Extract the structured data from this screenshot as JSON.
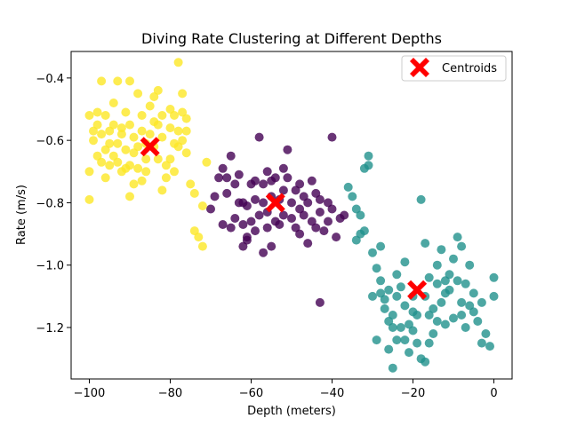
{
  "chart_data": {
    "type": "scatter",
    "title": "Diving Rate Clustering at Different Depths",
    "xlabel": "Depth (meters)",
    "ylabel": "Rate (m/s)",
    "xlim": [
      -104.5,
      4.5
    ],
    "ylim": [
      -1.365,
      -0.315
    ],
    "xticks": [
      -100,
      -80,
      -60,
      -40,
      -20,
      0
    ],
    "yticks": [
      -1.2,
      -1.0,
      -0.8,
      -0.6,
      -0.4
    ],
    "xtick_labels": [
      "−100",
      "−80",
      "−60",
      "−40",
      "−20",
      "0"
    ],
    "ytick_labels": [
      "−1.2",
      "−1.0",
      "−0.8",
      "−0.6",
      "−0.4"
    ],
    "grid": false,
    "legend": {
      "placement": "top-right",
      "entries": [
        "Centroids"
      ]
    },
    "colors": {
      "cluster0": "#440154",
      "cluster1": "#21918c",
      "cluster2": "#fde725",
      "centroid": "#ff0000"
    },
    "clusters": [
      {
        "color": "#440154",
        "points": [
          [
            -70,
            -0.82
          ],
          [
            -69,
            -0.78
          ],
          [
            -68,
            -0.72
          ],
          [
            -67,
            -0.69
          ],
          [
            -66,
            -0.72
          ],
          [
            -66,
            -0.77
          ],
          [
            -65,
            -0.65
          ],
          [
            -65,
            -0.88
          ],
          [
            -64,
            -0.74
          ],
          [
            -64,
            -0.85
          ],
          [
            -63,
            -0.8
          ],
          [
            -62,
            -0.87
          ],
          [
            -62,
            -0.94
          ],
          [
            -61,
            -0.81
          ],
          [
            -61,
            -0.92
          ],
          [
            -60,
            -0.86
          ],
          [
            -60,
            -0.74
          ],
          [
            -59,
            -0.73
          ],
          [
            -59,
            -0.79
          ],
          [
            -58,
            -0.84
          ],
          [
            -57,
            -0.74
          ],
          [
            -57,
            -0.8
          ],
          [
            -56,
            -0.83
          ],
          [
            -56,
            -0.88
          ],
          [
            -55,
            -0.73
          ],
          [
            -55,
            -0.78
          ],
          [
            -54,
            -0.72
          ],
          [
            -54,
            -0.86
          ],
          [
            -53,
            -0.79
          ],
          [
            -53,
            -0.87
          ],
          [
            -52,
            -0.76
          ],
          [
            -52,
            -0.69
          ],
          [
            -51,
            -0.72
          ],
          [
            -50,
            -0.8
          ],
          [
            -50,
            -0.85
          ],
          [
            -49,
            -0.76
          ],
          [
            -48,
            -0.82
          ],
          [
            -48,
            -0.9
          ],
          [
            -47,
            -0.78
          ],
          [
            -47,
            -0.84
          ],
          [
            -46,
            -0.8
          ],
          [
            -45,
            -0.86
          ],
          [
            -45,
            -0.73
          ],
          [
            -44,
            -0.88
          ],
          [
            -43,
            -0.83
          ],
          [
            -43,
            -0.79
          ],
          [
            -42,
            -0.89
          ],
          [
            -41,
            -0.86
          ],
          [
            -41,
            -0.8
          ],
          [
            -40,
            -0.82
          ],
          [
            -39,
            -0.91
          ],
          [
            -38,
            -0.85
          ],
          [
            -37,
            -0.84
          ],
          [
            -59,
            -0.89
          ],
          [
            -57,
            -0.96
          ],
          [
            -62,
            -0.8
          ],
          [
            -58,
            -0.59
          ],
          [
            -51,
            -0.63
          ],
          [
            -40,
            -0.59
          ],
          [
            -43,
            -1.12
          ],
          [
            -61,
            -0.91
          ],
          [
            -55,
            -0.94
          ],
          [
            -49,
            -0.88
          ],
          [
            -46,
            -0.93
          ],
          [
            -63,
            -0.71
          ],
          [
            -67,
            -0.87
          ],
          [
            -56,
            -0.7
          ],
          [
            -48,
            -0.74
          ],
          [
            -44,
            -0.77
          ],
          [
            -52,
            -0.84
          ]
        ]
      },
      {
        "color": "#21918c",
        "points": [
          [
            -36,
            -0.75
          ],
          [
            -35,
            -0.78
          ],
          [
            -34,
            -0.82
          ],
          [
            -33,
            -0.84
          ],
          [
            -32,
            -0.69
          ],
          [
            -31,
            -0.68
          ],
          [
            -31,
            -0.65
          ],
          [
            -33,
            -0.9
          ],
          [
            -34,
            -0.92
          ],
          [
            -32,
            -0.89
          ],
          [
            -30,
            -0.96
          ],
          [
            -29,
            -1.01
          ],
          [
            -28,
            -1.05
          ],
          [
            -28,
            -1.09
          ],
          [
            -27,
            -1.11
          ],
          [
            -27,
            -1.14
          ],
          [
            -26,
            -1.18
          ],
          [
            -25,
            -1.2
          ],
          [
            -25,
            -1.16
          ],
          [
            -24,
            -1.1
          ],
          [
            -24,
            -1.03
          ],
          [
            -23,
            -1.07
          ],
          [
            -22,
            -1.13
          ],
          [
            -22,
            -1.24
          ],
          [
            -21,
            -1.19
          ],
          [
            -20,
            -1.15
          ],
          [
            -20,
            -1.21
          ],
          [
            -19,
            -1.25
          ],
          [
            -18,
            -1.3
          ],
          [
            -18,
            -0.79
          ],
          [
            -17,
            -1.1
          ],
          [
            -17,
            -0.93
          ],
          [
            -16,
            -1.04
          ],
          [
            -16,
            -1.16
          ],
          [
            -15,
            -1.22
          ],
          [
            -14,
            -1.0
          ],
          [
            -14,
            -1.06
          ],
          [
            -13,
            -1.12
          ],
          [
            -13,
            -0.95
          ],
          [
            -12,
            -1.19
          ],
          [
            -11,
            -1.03
          ],
          [
            -11,
            -1.08
          ],
          [
            -10,
            -1.17
          ],
          [
            -10,
            -0.98
          ],
          [
            -9,
            -0.91
          ],
          [
            -9,
            -1.05
          ],
          [
            -8,
            -0.94
          ],
          [
            -8,
            -1.12
          ],
          [
            -7,
            -1.2
          ],
          [
            -7,
            -1.06
          ],
          [
            -6,
            -1.0
          ],
          [
            -5,
            -1.09
          ],
          [
            -5,
            -1.15
          ],
          [
            -4,
            -1.18
          ],
          [
            -3,
            -1.12
          ],
          [
            -3,
            -1.25
          ],
          [
            -2,
            -1.22
          ],
          [
            -1,
            -1.26
          ],
          [
            0,
            -1.04
          ],
          [
            0,
            -1.1
          ],
          [
            -29,
            -1.24
          ],
          [
            -26,
            -1.27
          ],
          [
            -25,
            -1.33
          ],
          [
            -23,
            -1.2
          ],
          [
            -21,
            -1.28
          ],
          [
            -19,
            -1.16
          ],
          [
            -17,
            -1.31
          ],
          [
            -15,
            -1.14
          ],
          [
            -12,
            -1.09
          ],
          [
            -6,
            -1.13
          ],
          [
            -30,
            -1.1
          ],
          [
            -28,
            -0.94
          ],
          [
            -26,
            -1.08
          ],
          [
            -24,
            -1.24
          ],
          [
            -22,
            -0.99
          ],
          [
            -20,
            -1.1
          ],
          [
            -16,
            -1.25
          ],
          [
            -14,
            -1.18
          ],
          [
            -12,
            -1.05
          ],
          [
            -8,
            -1.16
          ]
        ]
      },
      {
        "color": "#fde725",
        "points": [
          [
            -100,
            -0.52
          ],
          [
            -99,
            -0.57
          ],
          [
            -99,
            -0.6
          ],
          [
            -98,
            -0.55
          ],
          [
            -98,
            -0.65
          ],
          [
            -97,
            -0.41
          ],
          [
            -97,
            -0.58
          ],
          [
            -96,
            -0.52
          ],
          [
            -96,
            -0.63
          ],
          [
            -95,
            -0.57
          ],
          [
            -95,
            -0.68
          ],
          [
            -94,
            -0.48
          ],
          [
            -94,
            -0.55
          ],
          [
            -93,
            -0.41
          ],
          [
            -93,
            -0.61
          ],
          [
            -92,
            -0.58
          ],
          [
            -92,
            -0.7
          ],
          [
            -91,
            -0.51
          ],
          [
            -91,
            -0.63
          ],
          [
            -90,
            -0.41
          ],
          [
            -90,
            -0.55
          ],
          [
            -90,
            -0.68
          ],
          [
            -89,
            -0.59
          ],
          [
            -89,
            -0.74
          ],
          [
            -88,
            -0.45
          ],
          [
            -88,
            -0.62
          ],
          [
            -87,
            -0.52
          ],
          [
            -87,
            -0.57
          ],
          [
            -86,
            -0.66
          ],
          [
            -86,
            -0.7
          ],
          [
            -85,
            -0.49
          ],
          [
            -85,
            -0.58
          ],
          [
            -84,
            -0.54
          ],
          [
            -84,
            -0.62
          ],
          [
            -83,
            -0.44
          ],
          [
            -83,
            -0.66
          ],
          [
            -82,
            -0.52
          ],
          [
            -82,
            -0.59
          ],
          [
            -81,
            -0.68
          ],
          [
            -81,
            -0.72
          ],
          [
            -80,
            -0.5
          ],
          [
            -80,
            -0.56
          ],
          [
            -79,
            -0.61
          ],
          [
            -79,
            -0.52
          ],
          [
            -78,
            -0.35
          ],
          [
            -78,
            -0.57
          ],
          [
            -77,
            -0.45
          ],
          [
            -77,
            -0.6
          ],
          [
            -76,
            -0.53
          ],
          [
            -76,
            -0.64
          ],
          [
            -75,
            -0.74
          ],
          [
            -74,
            -0.77
          ],
          [
            -74,
            -0.89
          ],
          [
            -73,
            -0.91
          ],
          [
            -72,
            -0.94
          ],
          [
            -72,
            -0.81
          ],
          [
            -71,
            -0.67
          ],
          [
            -100,
            -0.7
          ],
          [
            -100,
            -0.79
          ],
          [
            -98,
            -0.51
          ],
          [
            -96,
            -0.72
          ],
          [
            -94,
            -0.65
          ],
          [
            -92,
            -0.56
          ],
          [
            -90,
            -0.78
          ],
          [
            -88,
            -0.69
          ],
          [
            -86,
            -0.61
          ],
          [
            -84,
            -0.46
          ],
          [
            -82,
            -0.76
          ],
          [
            -80,
            -0.66
          ],
          [
            -78,
            -0.62
          ],
          [
            -76,
            -0.57
          ],
          [
            -89,
            -0.64
          ],
          [
            -87,
            -0.73
          ],
          [
            -79,
            -0.7
          ],
          [
            -77,
            -0.51
          ],
          [
            -93,
            -0.67
          ],
          [
            -97,
            -0.67
          ],
          [
            -95,
            -0.61
          ],
          [
            -91,
            -0.69
          ],
          [
            -83,
            -0.55
          ]
        ]
      }
    ],
    "centroids": [
      [
        -85,
        -0.62
      ],
      [
        -54,
        -0.8
      ],
      [
        -19,
        -1.08
      ]
    ]
  }
}
